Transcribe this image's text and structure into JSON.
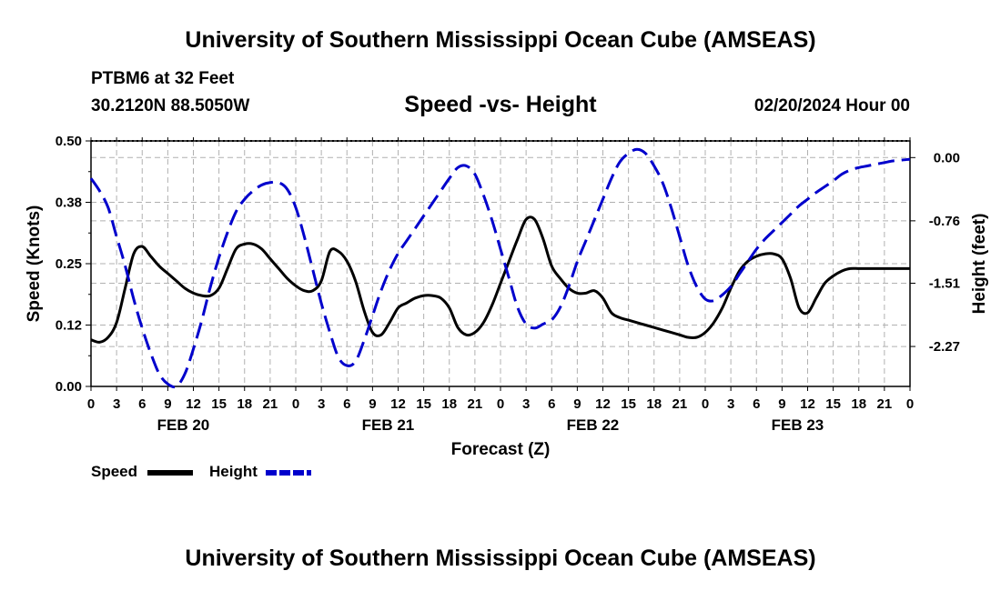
{
  "header": {
    "title": "University of Southern Mississippi Ocean Cube (AMSEAS)",
    "station": "PTBM6 at 32 Feet",
    "coords": "30.2120N  88.5050W",
    "chart_title": "Speed -vs- Height",
    "datetime": "02/20/2024 Hour 00"
  },
  "footer": {
    "title": "University of Southern Mississippi Ocean Cube (AMSEAS)"
  },
  "colors": {
    "speed": "#000000",
    "height": "#0000cc",
    "grid": "#b0b0b0"
  },
  "chart_data": {
    "type": "line",
    "title": "Speed -vs- Height",
    "xlabel": "Forecast (Z)",
    "ylabel": "Speed (Knots)",
    "y2label": "Height (feet)",
    "x_range_hours": [
      0,
      96
    ],
    "x_tick_labels": [
      "0",
      "3",
      "6",
      "9",
      "12",
      "15",
      "18",
      "21",
      "0",
      "3",
      "6",
      "9",
      "12",
      "15",
      "18",
      "21",
      "0",
      "3",
      "6",
      "9",
      "12",
      "15",
      "18",
      "21",
      "0",
      "3",
      "6",
      "9",
      "12",
      "15",
      "18",
      "21",
      "0"
    ],
    "date_labels": [
      {
        "label": "FEB 20",
        "hour": 10.5
      },
      {
        "label": "FEB 21",
        "hour": 34.5
      },
      {
        "label": "FEB 22",
        "hour": 58.5
      },
      {
        "label": "FEB 23",
        "hour": 82.5
      }
    ],
    "ylim": [
      0,
      0.5
    ],
    "y_ticks": [
      0.0,
      0.125,
      0.25,
      0.375,
      0.5
    ],
    "y_tick_labels": [
      "0.00",
      "0.12",
      "0.25",
      "0.38",
      "0.50"
    ],
    "y2lim": [
      -2.75,
      0.2
    ],
    "y2_ticks": [
      0.0,
      -0.76,
      -1.51,
      -2.27
    ],
    "y2_tick_labels": [
      "0.00",
      "-0.76",
      "-1.51",
      "-2.27"
    ],
    "legend": [
      "Speed",
      "Height"
    ],
    "series": [
      {
        "name": "Speed",
        "axis": "left",
        "style": "solid",
        "x": [
          0,
          1,
          2,
          3,
          4,
          5,
          6,
          7,
          8,
          9,
          10,
          11,
          12,
          13,
          14,
          15,
          16,
          17,
          18,
          19,
          20,
          21,
          22,
          23,
          24,
          25,
          26,
          27,
          28,
          29,
          30,
          31,
          32,
          33,
          34,
          35,
          36,
          37,
          38,
          39,
          40,
          41,
          42,
          43,
          44,
          45,
          46,
          47,
          48,
          49,
          50,
          51,
          52,
          53,
          54,
          55,
          56,
          57,
          58,
          59,
          60,
          61,
          62,
          63,
          64,
          65,
          66,
          67,
          68,
          69,
          70,
          71,
          72,
          73,
          74,
          75,
          76,
          77,
          78,
          79,
          80,
          81,
          82,
          83,
          84,
          85,
          86,
          87,
          88,
          89,
          90,
          91,
          92,
          93,
          94,
          95,
          96
        ],
        "values": [
          0.095,
          0.09,
          0.1,
          0.13,
          0.2,
          0.27,
          0.285,
          0.265,
          0.245,
          0.23,
          0.215,
          0.2,
          0.19,
          0.185,
          0.185,
          0.2,
          0.24,
          0.28,
          0.29,
          0.29,
          0.28,
          0.26,
          0.24,
          0.22,
          0.205,
          0.195,
          0.195,
          0.215,
          0.275,
          0.275,
          0.255,
          0.215,
          0.155,
          0.11,
          0.105,
          0.13,
          0.16,
          0.17,
          0.18,
          0.185,
          0.185,
          0.18,
          0.16,
          0.12,
          0.105,
          0.11,
          0.13,
          0.165,
          0.21,
          0.255,
          0.3,
          0.34,
          0.34,
          0.3,
          0.245,
          0.22,
          0.2,
          0.19,
          0.19,
          0.195,
          0.18,
          0.15,
          0.14,
          0.135,
          0.13,
          0.125,
          0.12,
          0.115,
          0.11,
          0.105,
          0.1,
          0.1,
          0.11,
          0.13,
          0.16,
          0.2,
          0.235,
          0.255,
          0.265,
          0.27,
          0.27,
          0.26,
          0.22,
          0.16,
          0.15,
          0.18,
          0.21,
          0.225,
          0.235,
          0.24,
          0.24,
          0.24,
          0.24,
          0.24,
          0.24,
          0.24,
          0.24
        ]
      },
      {
        "name": "Height",
        "axis": "right",
        "style": "dashed",
        "x": [
          0,
          1,
          2,
          3,
          4,
          5,
          6,
          7,
          8,
          9,
          10,
          11,
          12,
          13,
          14,
          15,
          16,
          17,
          18,
          19,
          20,
          21,
          22,
          23,
          24,
          25,
          26,
          27,
          28,
          29,
          30,
          31,
          32,
          33,
          34,
          35,
          36,
          37,
          38,
          39,
          40,
          41,
          42,
          43,
          44,
          45,
          46,
          47,
          48,
          49,
          50,
          51,
          52,
          53,
          54,
          55,
          56,
          57,
          58,
          59,
          60,
          61,
          62,
          63,
          64,
          65,
          66,
          67,
          68,
          69,
          70,
          71,
          72,
          73,
          74,
          75,
          76,
          77,
          78,
          79,
          80,
          81,
          82,
          83,
          84,
          85,
          86,
          87,
          88,
          89,
          90,
          91,
          92,
          93,
          94,
          95,
          96
        ],
        "values": [
          -0.25,
          -0.4,
          -0.6,
          -0.95,
          -1.3,
          -1.7,
          -2.05,
          -2.35,
          -2.6,
          -2.72,
          -2.75,
          -2.6,
          -2.3,
          -1.95,
          -1.55,
          -1.2,
          -0.9,
          -0.65,
          -0.5,
          -0.4,
          -0.33,
          -0.3,
          -0.3,
          -0.38,
          -0.6,
          -0.95,
          -1.35,
          -1.75,
          -2.1,
          -2.4,
          -2.5,
          -2.45,
          -2.2,
          -1.9,
          -1.6,
          -1.35,
          -1.15,
          -1.0,
          -0.85,
          -0.7,
          -0.55,
          -0.4,
          -0.25,
          -0.12,
          -0.1,
          -0.2,
          -0.45,
          -0.75,
          -1.1,
          -1.45,
          -1.8,
          -2.0,
          -2.05,
          -2.0,
          -1.95,
          -1.8,
          -1.55,
          -1.25,
          -1.0,
          -0.75,
          -0.5,
          -0.25,
          -0.05,
          0.05,
          0.1,
          0.05,
          -0.1,
          -0.3,
          -0.6,
          -0.95,
          -1.3,
          -1.55,
          -1.7,
          -1.72,
          -1.65,
          -1.55,
          -1.4,
          -1.25,
          -1.1,
          -0.98,
          -0.88,
          -0.78,
          -0.68,
          -0.58,
          -0.5,
          -0.42,
          -0.35,
          -0.28,
          -0.2,
          -0.15,
          -0.12,
          -0.1,
          -0.08,
          -0.06,
          -0.04,
          -0.03,
          -0.02
        ]
      }
    ]
  }
}
